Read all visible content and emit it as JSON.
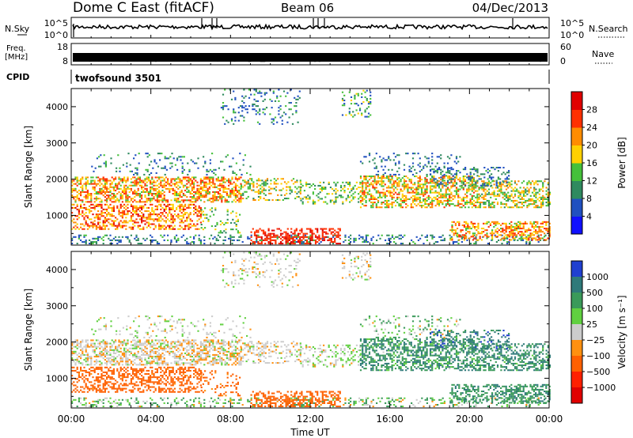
{
  "header": {
    "title": "Dome C East (fitACF)",
    "beam": "Beam 06",
    "date": "04/Dec/2013"
  },
  "sky_panel": {
    "left_label": "N.Sky",
    "right_label": "N.Search",
    "tick_top": "10^5",
    "tick_bottom": "10^0",
    "right_tick_top": "10^5",
    "right_tick_bottom": "10^0"
  },
  "freq_panel": {
    "left_label_1": "Freq.",
    "left_label_2": "[MHz]",
    "left_tick_top": "18",
    "left_tick_bottom": "8",
    "right_label": "Nave",
    "right_tick_top": "60",
    "right_tick_bottom": "0"
  },
  "cpid": {
    "label": "CPID",
    "value": "twofsound 3501"
  },
  "chart_data": [
    {
      "type": "heatmap",
      "name": "power",
      "ylabel": "Slant Range [km]",
      "x_ticks": [
        "00:00",
        "04:00",
        "08:00",
        "12:00",
        "16:00",
        "20:00",
        "00:00"
      ],
      "x_range_hours": [
        0,
        24
      ],
      "y_ticks": [
        1000,
        2000,
        3000,
        4000
      ],
      "y_range": [
        180,
        4500
      ],
      "colorbar": {
        "label": "Power [dB]",
        "ticks": [
          "4",
          "8",
          "12",
          "16",
          "20",
          "24",
          "28"
        ],
        "colors": [
          "#1010ff",
          "#2050c0",
          "#2f8a5f",
          "#45c03a",
          "#ffd000",
          "#ff8c00",
          "#ff3000",
          "#e00000"
        ]
      }
    },
    {
      "type": "heatmap",
      "name": "velocity",
      "ylabel": "Slant Range [km]",
      "xlabel": "Time UT",
      "x_ticks": [
        "00:00",
        "04:00",
        "08:00",
        "12:00",
        "16:00",
        "20:00",
        "00:00"
      ],
      "x_range_hours": [
        0,
        24
      ],
      "y_ticks": [
        1000,
        2000,
        3000,
        4000
      ],
      "y_range": [
        180,
        4500
      ],
      "colorbar": {
        "label": "Velocity [m s⁻¹]",
        "ticks": [
          "1000",
          "500",
          "100",
          "25",
          "−25",
          "−100",
          "−500",
          "−1000"
        ],
        "colors": [
          "#2040d0",
          "#2f7a7a",
          "#3a9a5a",
          "#60d040",
          "#cccccc",
          "#ff9010",
          "#ff6000",
          "#ff2000",
          "#e00000"
        ]
      }
    }
  ]
}
